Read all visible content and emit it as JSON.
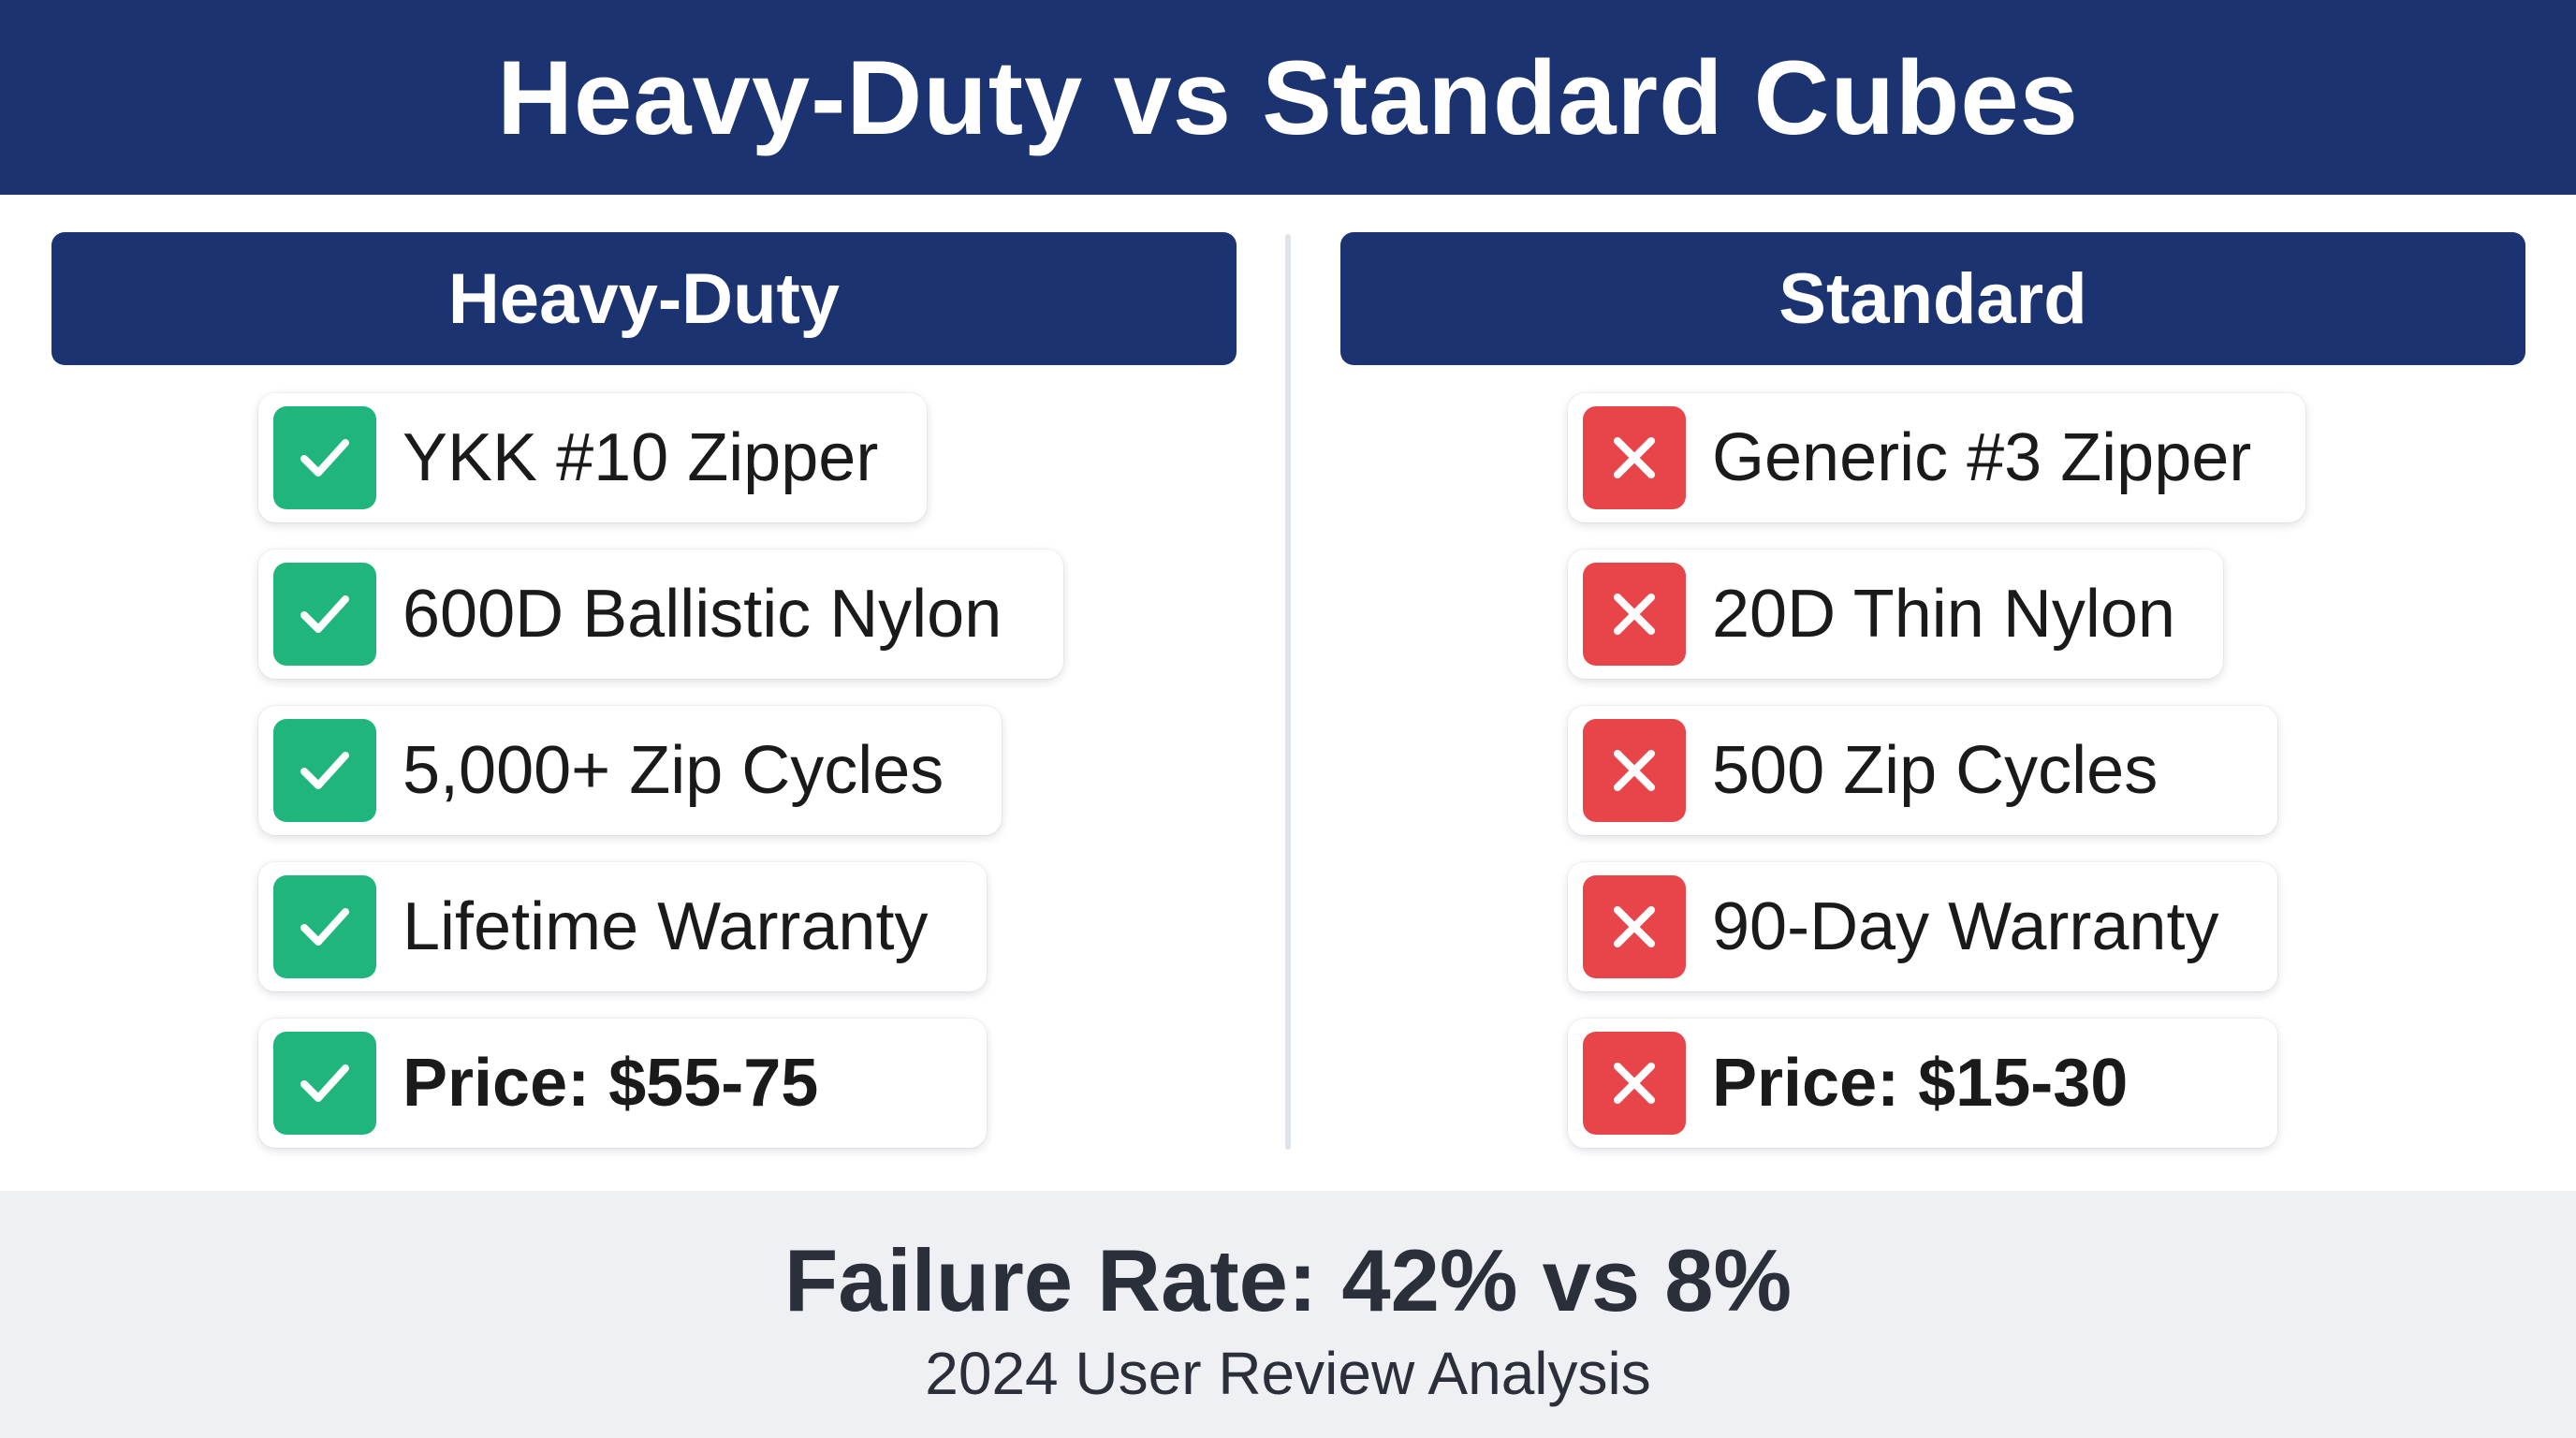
{
  "title": "Heavy-Duty vs Standard Cubes",
  "columns": {
    "left": {
      "header": "Heavy-Duty",
      "items": [
        {
          "label": "YKK #10 Zipper",
          "icon": "check-icon"
        },
        {
          "label": "600D Ballistic Nylon",
          "icon": "check-icon"
        },
        {
          "label": "5,000+ Zip Cycles",
          "icon": "check-icon"
        },
        {
          "label": "Lifetime Warranty",
          "icon": "check-icon"
        },
        {
          "label": "Price: $55-75",
          "icon": "check-icon"
        }
      ]
    },
    "right": {
      "header": "Standard",
      "items": [
        {
          "label": "Generic #3 Zipper",
          "icon": "cross-icon"
        },
        {
          "label": "20D Thin Nylon",
          "icon": "cross-icon"
        },
        {
          "label": "500 Zip Cycles",
          "icon": "cross-icon"
        },
        {
          "label": "90-Day Warranty",
          "icon": "cross-icon"
        },
        {
          "label": "Price: $15-30",
          "icon": "cross-icon"
        }
      ]
    }
  },
  "footer": {
    "headline": "Failure Rate: 42% vs 8%",
    "subtitle": "2024 User Review Analysis"
  },
  "colors": {
    "navy": "#1c3372",
    "check_green": "#1fb57d",
    "cross_red": "#e8454a",
    "footer_bg": "#eef0f4"
  }
}
